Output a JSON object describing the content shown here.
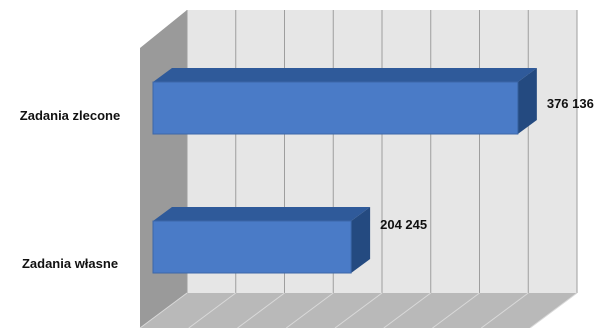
{
  "chart_data": {
    "type": "bar",
    "orientation": "horizontal",
    "style": "3d",
    "categories": [
      "Zadania zlecone",
      "Zadania własne"
    ],
    "values": [
      376136,
      204245
    ],
    "value_labels": [
      "376 136",
      "204 245"
    ],
    "xlim": [
      0,
      400000
    ],
    "grid": true,
    "legend": "none",
    "colors": {
      "bar_front": "#4a7bc7",
      "bar_top": "#2f5a9a",
      "bar_side": "#244a80",
      "wall": "#e6e6e6",
      "wall_left": "#9a9a9a",
      "floor": "#b9b9b9",
      "gridline": "#9e9e9e"
    }
  }
}
